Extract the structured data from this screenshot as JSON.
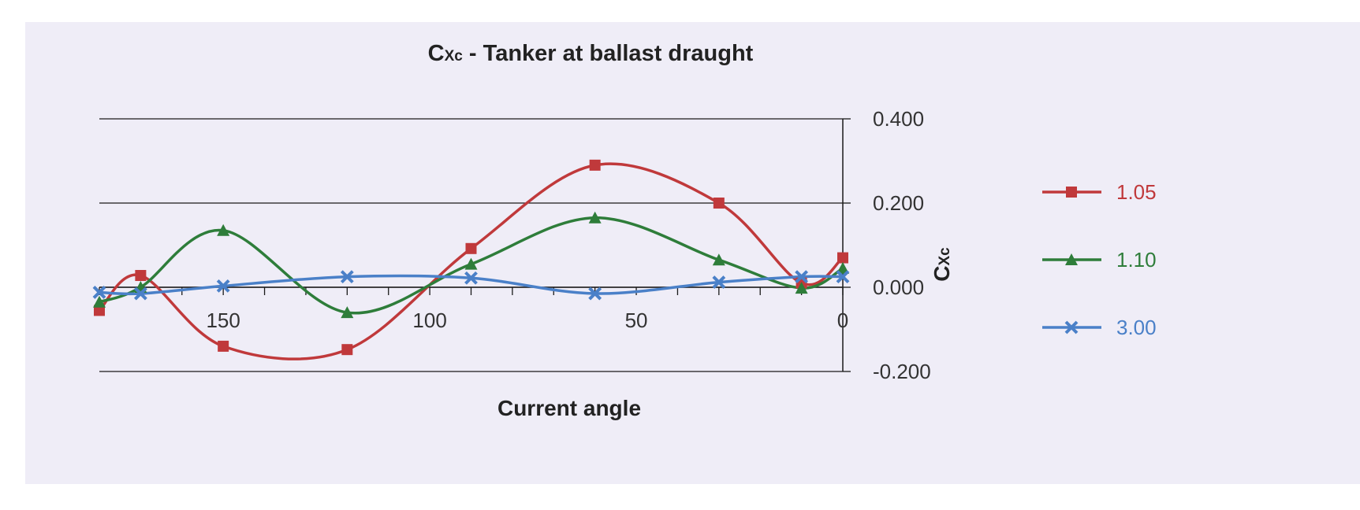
{
  "chart_data": {
    "type": "line",
    "title": {
      "symbol": "C",
      "subscript": "Xc",
      "text": " - Tanker at ballast draught"
    },
    "xlabel": "Current angle",
    "ylabel": {
      "symbol": "C",
      "subscript": "Xc"
    },
    "x_reversed": true,
    "xlim": [
      180,
      0
    ],
    "ylim": [
      -0.2,
      0.4
    ],
    "x_ticks": [
      {
        "value": 150,
        "label": "150"
      },
      {
        "value": 100,
        "label": "100"
      },
      {
        "value": 50,
        "label": "50"
      },
      {
        "value": 0,
        "label": "0"
      }
    ],
    "y_ticks": [
      {
        "value": 0.4,
        "label": "0.400"
      },
      {
        "value": 0.2,
        "label": "0.200"
      },
      {
        "value": 0.0,
        "label": "0.000"
      },
      {
        "value": -0.2,
        "label": "-0.200"
      }
    ],
    "grid": "horizontal",
    "y_axis_side": "right",
    "legend_position": "right",
    "series": [
      {
        "name": "1.05",
        "color": "#c0393b",
        "marker": "square",
        "x": [
          180,
          170,
          150,
          120,
          90,
          60,
          30,
          10,
          0
        ],
        "y": [
          -0.055,
          0.028,
          -0.14,
          -0.148,
          0.092,
          0.29,
          0.2,
          0.01,
          0.07
        ]
      },
      {
        "name": "1.10",
        "color": "#2e7d3a",
        "marker": "triangle",
        "x": [
          180,
          170,
          150,
          120,
          90,
          60,
          30,
          10,
          0
        ],
        "y": [
          -0.035,
          0.0,
          0.135,
          -0.06,
          0.055,
          0.165,
          0.065,
          -0.002,
          0.045
        ]
      },
      {
        "name": "3.00",
        "color": "#4a80c8",
        "marker": "x",
        "x": [
          180,
          170,
          150,
          120,
          90,
          60,
          30,
          10,
          0
        ],
        "y": [
          -0.012,
          -0.015,
          0.003,
          0.025,
          0.022,
          -0.015,
          0.012,
          0.025,
          0.025
        ]
      }
    ]
  }
}
